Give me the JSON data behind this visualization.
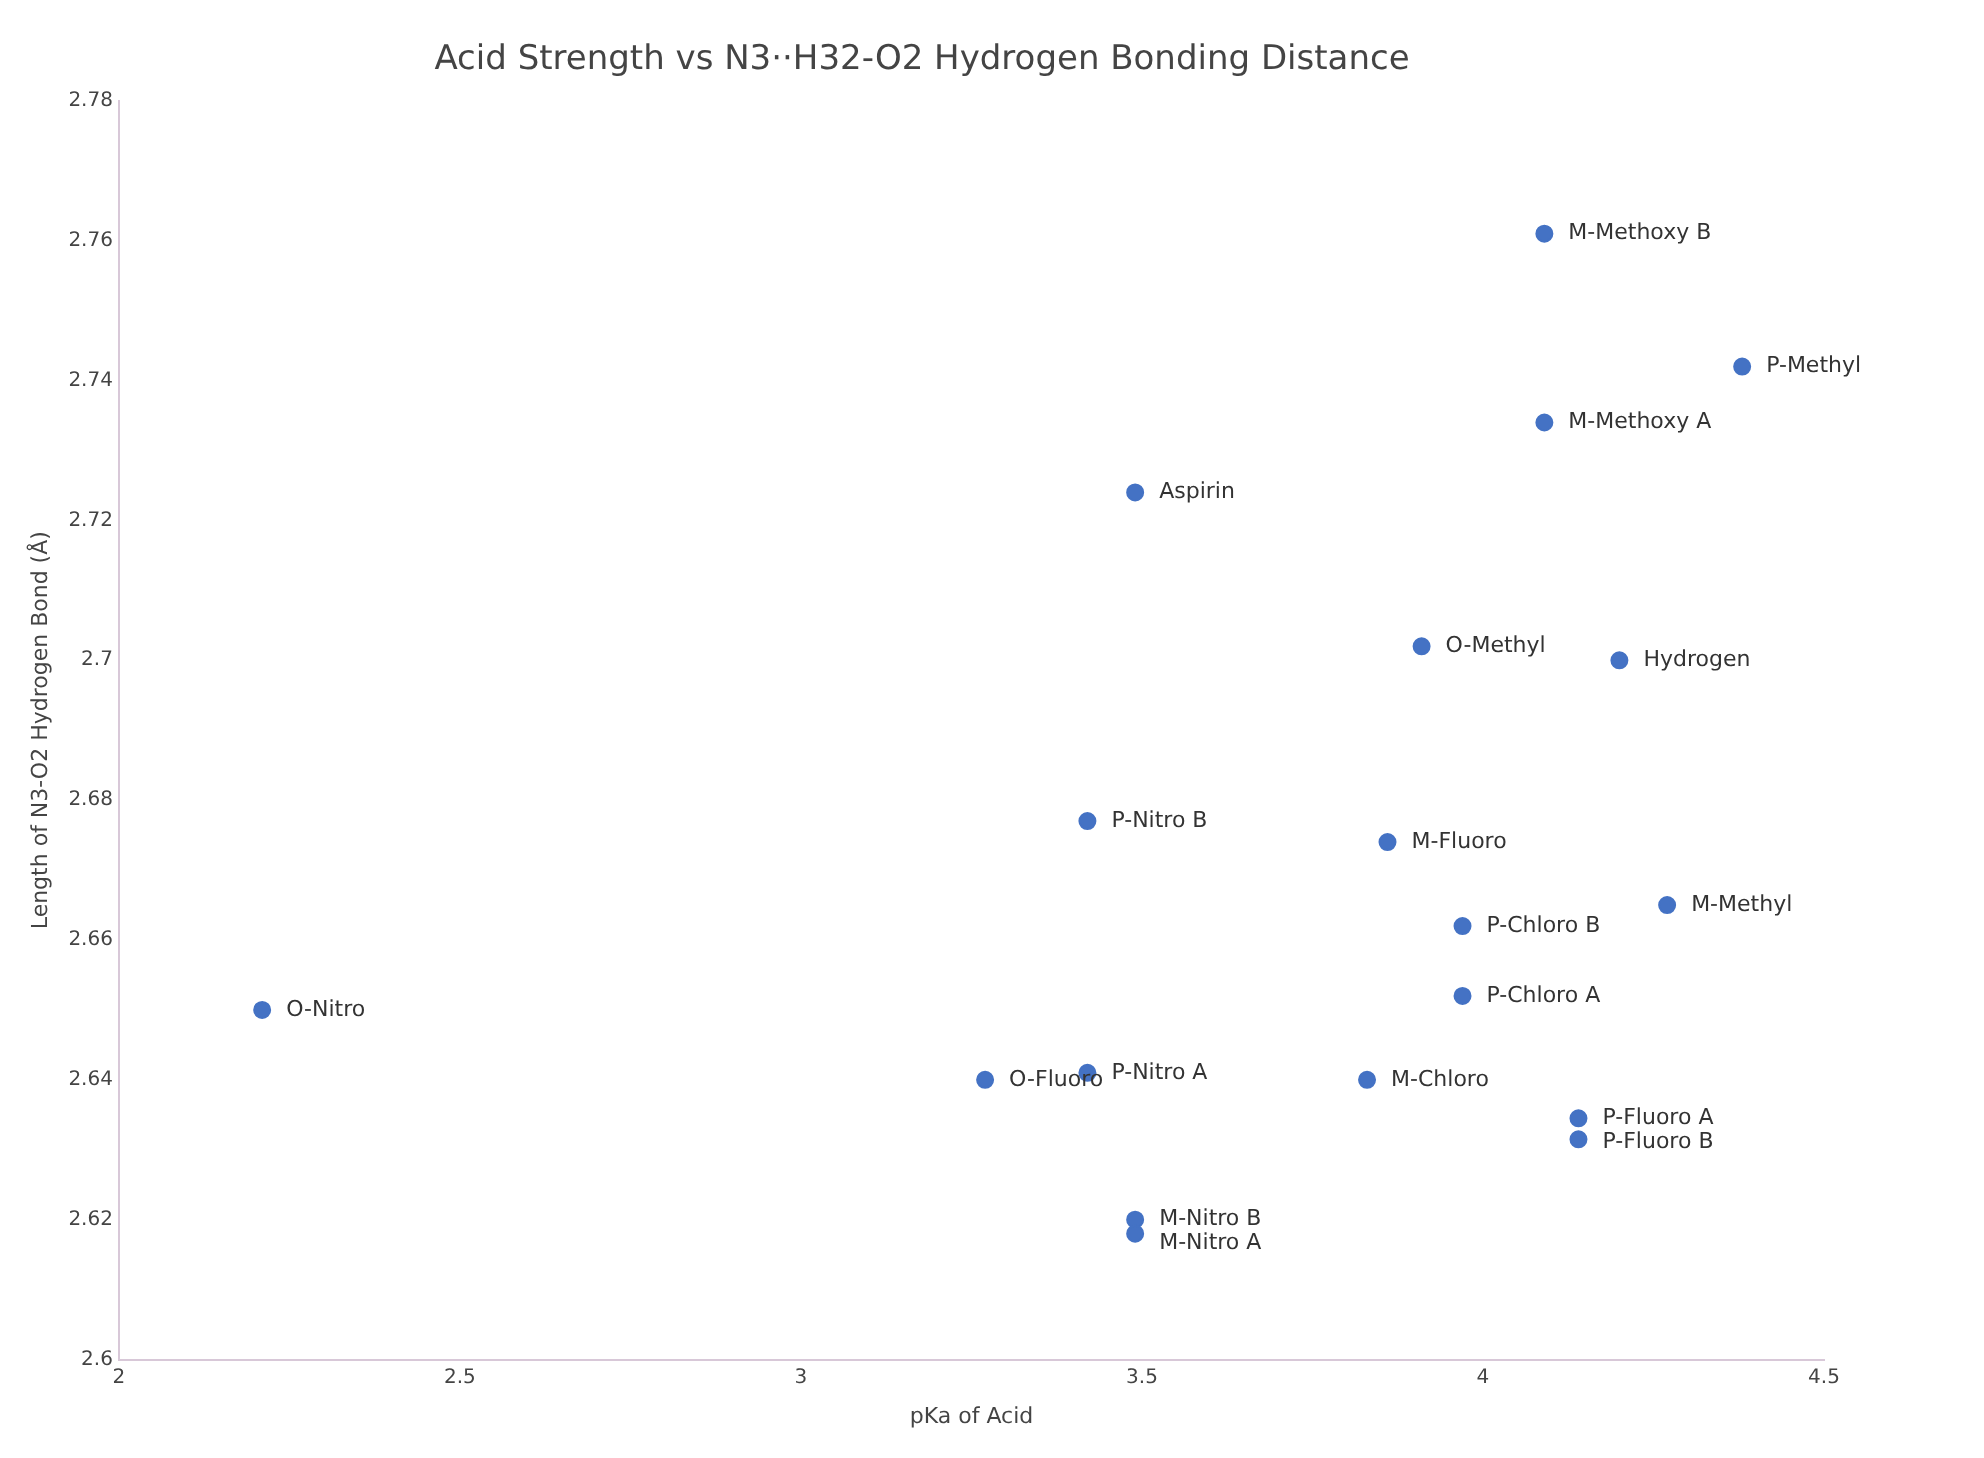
{
  "chart_data": {
    "type": "scatter",
    "title": "Acid Strength vs N3··H32-O2 Hydrogen Bonding Distance",
    "xlabel": "pKa of Acid",
    "ylabel": "Length of N3-O2 Hydrogen Bond (Å)",
    "x": [
      4.09,
      4.38,
      4.09,
      3.49,
      3.91,
      4.2,
      3.42,
      3.86,
      3.97,
      3.97,
      4.27,
      2.21,
      3.27,
      3.42,
      3.83,
      4.14,
      4.14,
      3.49,
      3.49
    ],
    "series": [
      {
        "color": "#4472c4",
        "values": [
          2.761,
          2.742,
          2.734,
          2.724,
          2.702,
          2.7,
          2.677,
          2.674,
          2.662,
          2.652,
          2.665,
          2.65,
          2.64,
          2.641,
          2.64,
          2.6345,
          2.6315,
          2.62,
          2.618
        ]
      }
    ],
    "annotations": [
      {
        "text": "M-Methoxy B",
        "x": 4.09,
        "y": 2.761
      },
      {
        "text": "P-Methyl",
        "x": 4.38,
        "y": 2.742
      },
      {
        "text": "M-Methoxy A",
        "x": 4.09,
        "y": 2.734
      },
      {
        "text": "Aspirin",
        "x": 3.49,
        "y": 2.724
      },
      {
        "text": "O-Methyl",
        "x": 3.91,
        "y": 2.702
      },
      {
        "text": "Hydrogen",
        "x": 4.2,
        "y": 2.7
      },
      {
        "text": "P-Nitro B",
        "x": 3.42,
        "y": 2.677
      },
      {
        "text": "M-Fluoro",
        "x": 3.86,
        "y": 2.674
      },
      {
        "text": "P-Chloro B",
        "x": 3.97,
        "y": 2.662
      },
      {
        "text": "P-Chloro A",
        "x": 3.97,
        "y": 2.652
      },
      {
        "text": "M-Methyl",
        "x": 4.27,
        "y": 2.665
      },
      {
        "text": "O-Nitro",
        "x": 2.21,
        "y": 2.65
      },
      {
        "text": "O-Fluoro",
        "x": 3.27,
        "y": 2.64
      },
      {
        "text": "P-Nitro A",
        "x": 3.42,
        "y": 2.641
      },
      {
        "text": "M-Chloro",
        "x": 3.83,
        "y": 2.64
      },
      {
        "text": "P-Fluoro A",
        "x": 4.14,
        "y": 2.6345
      },
      {
        "text": "P-Fluoro B",
        "x": 4.14,
        "y": 2.6315
      },
      {
        "text": "M-Nitro B",
        "x": 3.49,
        "y": 2.62
      },
      {
        "text": "M-Nitro A",
        "x": 3.49,
        "y": 2.618
      }
    ],
    "xlim": [
      2,
      4.5
    ],
    "xticks": [
      2,
      2.5,
      3,
      3.5,
      4,
      4.5
    ],
    "ylim": [
      2.6,
      2.78
    ],
    "yticks": [
      2.6,
      2.62,
      2.64,
      2.66,
      2.68,
      2.7,
      2.72,
      2.74,
      2.76,
      2.78
    ],
    "grid": false,
    "legend": false,
    "marker": "circle"
  }
}
